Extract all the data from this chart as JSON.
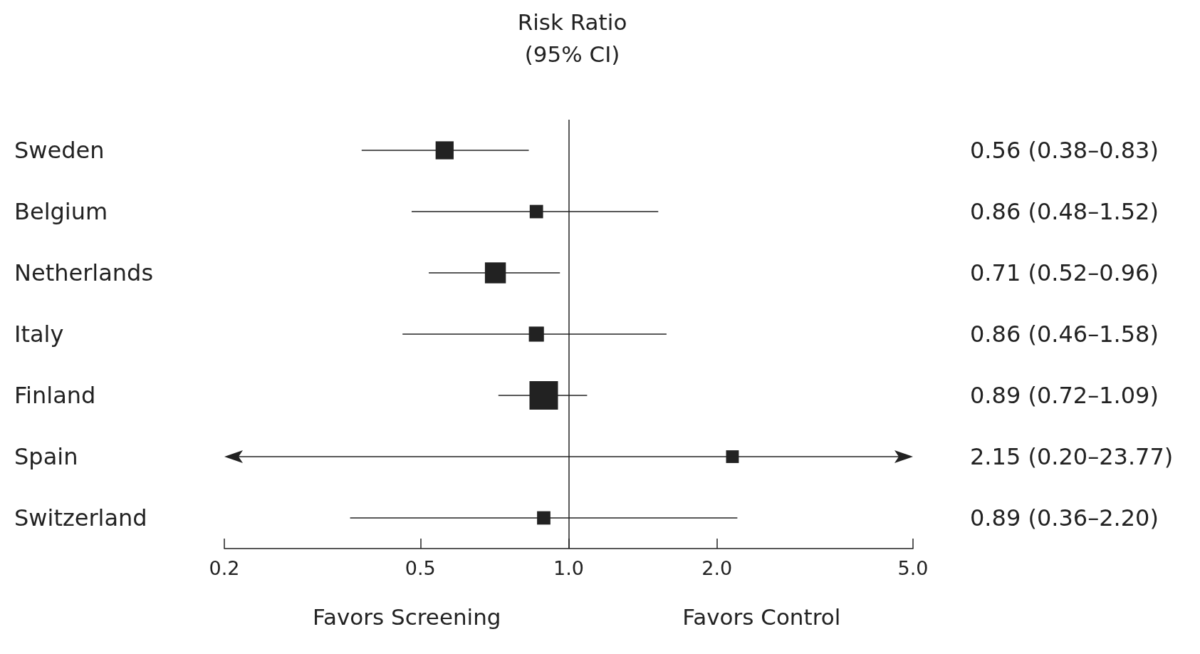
{
  "chart_data": {
    "type": "scatter",
    "orientation": "horizontal",
    "title": "Risk Ratio",
    "subtitle": "(95% CI)",
    "categories": [
      "Sweden",
      "Belgium",
      "Netherlands",
      "Italy",
      "Finland",
      "Spain",
      "Switzerland"
    ],
    "values": [
      0.56,
      0.86,
      0.71,
      0.86,
      0.89,
      2.15,
      0.89
    ],
    "errors": [
      [
        0.38,
        0.83
      ],
      [
        0.48,
        1.52
      ],
      [
        0.52,
        0.96
      ],
      [
        0.46,
        1.58
      ],
      [
        0.72,
        1.09
      ],
      null,
      [
        0.36,
        2.2
      ]
    ],
    "sizes": [
      0.4,
      0.22,
      0.54,
      0.28,
      1,
      0.2,
      0.22
    ],
    "color": "#222222",
    "marker": "square",
    "log": "x",
    "xlim": [
      0.2,
      5.0
    ],
    "xticks": [
      0.2,
      {
        "value": 0.5,
        "label": "0.5"
      },
      {
        "value": 1,
        "label": "1.0"
      },
      {
        "value": 2,
        "label": "2.0"
      },
      {
        "value": 5,
        "label": "5.0"
      }
    ],
    "ref_lines": [
      {
        "axis": "x",
        "value": 1,
        "label": null,
        "color": "#222222"
      }
    ],
    "annotations": [
      "Favors Screening",
      "Favors Control",
      "0.56 (0.38–0.83)",
      "0.86 (0.48–1.52)",
      "0.71 (0.52–0.96)",
      "0.86 (0.46–1.58)",
      "0.89 (0.72–1.09)",
      "2.15 (0.20–23.77)",
      "0.89 (0.36–2.20)"
    ],
    "grid": false,
    "legend": false
  }
}
